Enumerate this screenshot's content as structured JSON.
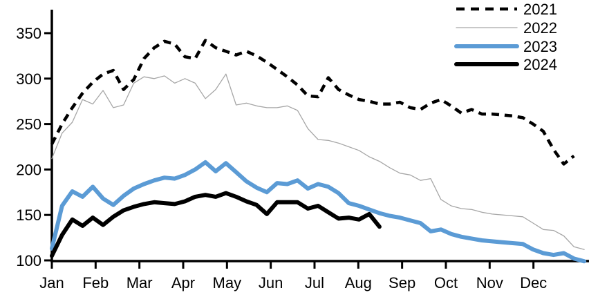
{
  "chart_data": {
    "type": "line",
    "title": "",
    "xlabel": "",
    "ylabel": "",
    "ylim": [
      100,
      350
    ],
    "yticks": [
      100,
      150,
      200,
      250,
      300,
      350
    ],
    "months": [
      "Jan",
      "Feb",
      "Mar",
      "Apr",
      "May",
      "Jun",
      "Jul",
      "Aug",
      "Sep",
      "Oct",
      "Nov",
      "Dec"
    ],
    "x_unit": "weekly",
    "grid": false,
    "legend_position": "top-right",
    "background_color": "#ffffff",
    "axis_color": "#000000",
    "series": [
      {
        "name": "2021",
        "color": "#000000",
        "style": "dashed",
        "width": 4.5,
        "values": [
          228,
          250,
          268,
          284,
          296,
          305,
          309,
          288,
          299,
          322,
          334,
          341,
          338,
          324,
          322,
          342,
          334,
          330,
          326,
          330,
          325,
          318,
          310,
          302,
          293,
          281,
          280,
          301,
          288,
          282,
          277,
          275,
          272,
          272,
          274,
          268,
          266,
          273,
          277,
          270,
          262,
          266,
          261,
          261,
          260,
          259,
          257,
          250,
          242,
          222,
          206,
          215
        ]
      },
      {
        "name": "2022",
        "color": "#a6a6a6",
        "style": "solid",
        "width": 1.3,
        "values": [
          212,
          240,
          252,
          277,
          272,
          287,
          268,
          271,
          295,
          302,
          300,
          303,
          295,
          300,
          295,
          278,
          288,
          305,
          271,
          273,
          270,
          268,
          268,
          270,
          265,
          245,
          233,
          232,
          229,
          225,
          221,
          214,
          209,
          202,
          196,
          194,
          188,
          190,
          167,
          160,
          157,
          156,
          153,
          151,
          150,
          149,
          148,
          141,
          134,
          133,
          127,
          115,
          112
        ]
      },
      {
        "name": "2023",
        "color": "#5b9bd5",
        "style": "solid",
        "width": 6,
        "values": [
          113,
          160,
          176,
          170,
          181,
          168,
          161,
          171,
          179,
          184,
          188,
          191,
          190,
          194,
          200,
          208,
          198,
          207,
          197,
          187,
          180,
          175,
          185,
          184,
          188,
          179,
          184,
          181,
          174,
          163,
          160,
          156,
          152,
          149,
          147,
          144,
          141,
          132,
          134,
          129,
          126,
          124,
          122,
          121,
          120,
          119,
          118,
          112,
          108,
          106,
          108,
          102,
          99
        ]
      },
      {
        "name": "2024",
        "color": "#000000",
        "style": "solid",
        "width": 6,
        "values": [
          105,
          128,
          145,
          138,
          147,
          139,
          148,
          155,
          159,
          162,
          164,
          163,
          162,
          165,
          170,
          172,
          170,
          174,
          170,
          165,
          161,
          151,
          164,
          164,
          164,
          157,
          160,
          153,
          146,
          147,
          145,
          151,
          137
        ]
      }
    ]
  }
}
